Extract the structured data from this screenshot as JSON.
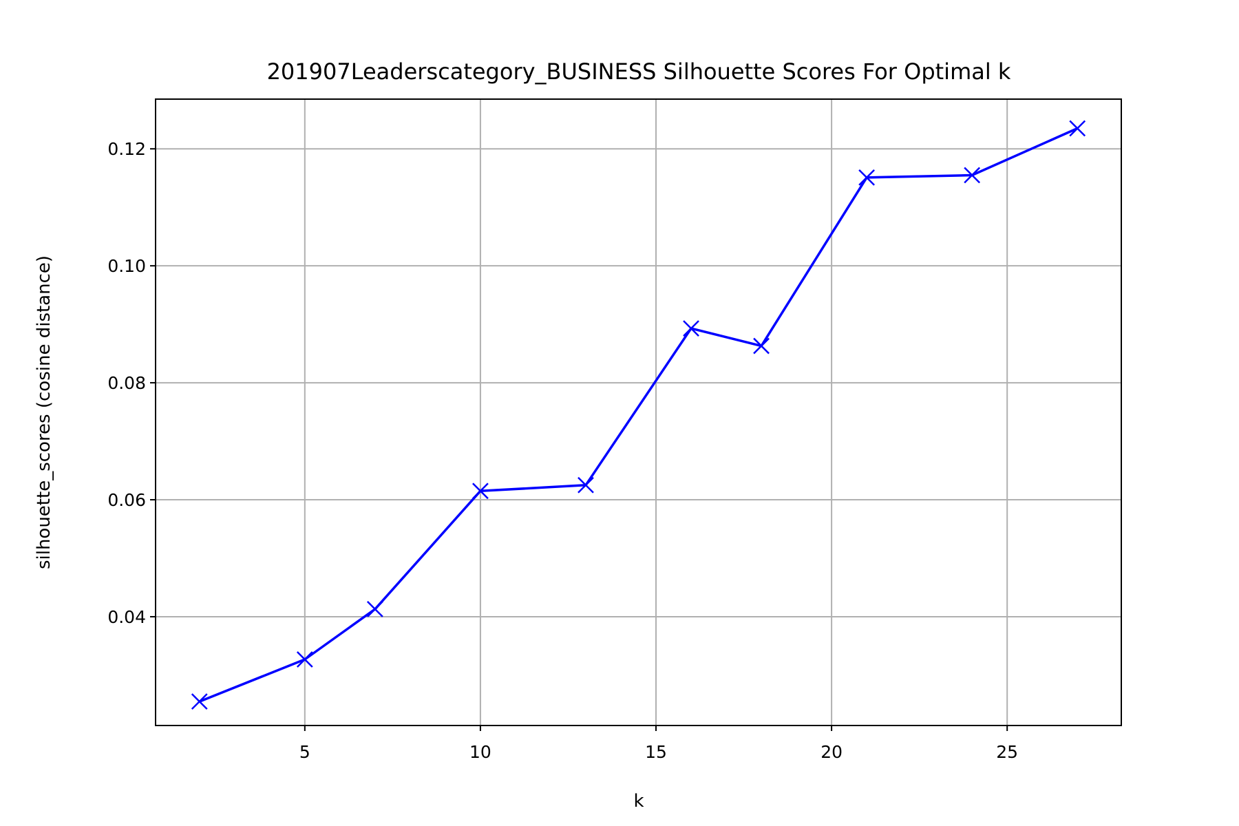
{
  "chart_data": {
    "type": "line",
    "title": "201907Leaderscategory_BUSINESS Silhouette Scores For Optimal k",
    "xlabel": "k",
    "ylabel": "silhouette_scores (cosine distance)",
    "x": [
      2,
      5,
      7,
      10,
      13,
      16,
      18,
      21,
      24,
      27
    ],
    "series": [
      {
        "values": [
          0.0255,
          0.0327,
          0.0413,
          0.0615,
          0.0625,
          0.0893,
          0.0863,
          0.1151,
          0.1155,
          0.1235
        ],
        "color": "#0000ff",
        "marker": "x"
      }
    ],
    "xlim": [
      0.75,
      28.25
    ],
    "ylim": [
      0.0214,
      0.1285
    ],
    "xticks": [
      5,
      10,
      15,
      20,
      25
    ],
    "xtick_labels": [
      "5",
      "10",
      "15",
      "20",
      "25"
    ],
    "yticks": [
      0.04,
      0.06,
      0.08,
      0.1,
      0.12
    ],
    "ytick_labels": [
      "0.04",
      "0.06",
      "0.08",
      "0.10",
      "0.12"
    ],
    "grid": true,
    "grid_color": "#b0b0b0"
  }
}
